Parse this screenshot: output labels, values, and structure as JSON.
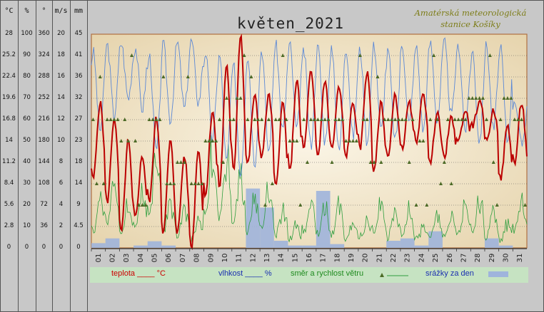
{
  "title": "květen_2021",
  "station": [
    "Amatérská meteorologická",
    "stanice Košíky"
  ],
  "colors": {
    "temperature": "#bb0000",
    "humidity": "#5b88d6",
    "wind_speed": "#2e9e3e",
    "wind_direction": "#4c6a26",
    "precipitation": "#9fb4dc",
    "legend_background": "#c6e3c2"
  },
  "axes": [
    {
      "unit": "°C",
      "ticks": [
        "28",
        "25.2",
        "22.4",
        "19.6",
        "16.8",
        "14",
        "11.2",
        "8.4",
        "5.6",
        "2.8",
        "0"
      ]
    },
    {
      "unit": "%",
      "ticks": [
        "100",
        "90",
        "80",
        "70",
        "60",
        "50",
        "40",
        "30",
        "20",
        "10",
        "0"
      ]
    },
    {
      "unit": "°",
      "ticks": [
        "360",
        "324",
        "288",
        "252",
        "216",
        "180",
        "144",
        "108",
        "72",
        "36",
        "0"
      ]
    },
    {
      "unit": "m/s",
      "ticks": [
        "20",
        "18",
        "16",
        "14",
        "12",
        "10",
        "8",
        "6",
        "4",
        "2",
        "0"
      ]
    },
    {
      "unit": "mm",
      "ticks": [
        "45",
        "41",
        "36",
        "32",
        "27",
        "23",
        "18",
        "14",
        "9",
        "4.5",
        "0"
      ]
    }
  ],
  "legend": {
    "temperature": "teplota ____ °C",
    "humidity": "vlhkost ____ %",
    "wind": "směr a rychlost větru",
    "precipitation": "srážky za den"
  },
  "chart_data": {
    "type": "line",
    "title": "květen_2021",
    "x": [
      "01",
      "02",
      "03",
      "04",
      "05",
      "06",
      "07",
      "08",
      "09",
      "10",
      "11",
      "12",
      "13",
      "14",
      "15",
      "16",
      "17",
      "18",
      "19",
      "20",
      "21",
      "22",
      "23",
      "24",
      "25",
      "26",
      "27",
      "28",
      "29",
      "30",
      "31"
    ],
    "grid": true,
    "series": [
      {
        "name": "teplota",
        "unit": "°C",
        "ylim": [
          0,
          28
        ],
        "daily_min_max": [
          [
            9,
            19
          ],
          [
            6,
            17
          ],
          [
            2,
            14
          ],
          [
            4,
            12
          ],
          [
            6,
            17
          ],
          [
            2,
            14
          ],
          [
            2,
            12
          ],
          [
            0,
            13
          ],
          [
            7,
            18
          ],
          [
            8,
            24
          ],
          [
            10,
            28
          ],
          [
            11,
            20
          ],
          [
            12,
            20
          ],
          [
            8,
            19
          ],
          [
            10,
            22
          ],
          [
            13,
            23
          ],
          [
            12,
            22
          ],
          [
            13,
            21
          ],
          [
            12,
            19
          ],
          [
            13,
            23
          ],
          [
            10,
            19
          ],
          [
            12,
            20
          ],
          [
            13,
            19
          ],
          [
            14,
            20
          ],
          [
            11,
            18
          ],
          [
            12,
            17
          ],
          [
            14,
            18
          ],
          [
            16,
            19
          ],
          [
            14,
            18
          ],
          [
            9,
            16
          ],
          [
            11,
            19
          ]
        ]
      },
      {
        "name": "vlhkost",
        "unit": "%",
        "ylim": [
          0,
          100
        ],
        "daily_min_max": [
          [
            55,
            92
          ],
          [
            62,
            95
          ],
          [
            70,
            96
          ],
          [
            65,
            94
          ],
          [
            45,
            90
          ],
          [
            60,
            95
          ],
          [
            65,
            96
          ],
          [
            68,
            97
          ],
          [
            50,
            92
          ],
          [
            40,
            90
          ],
          [
            35,
            85
          ],
          [
            40,
            90
          ],
          [
            45,
            93
          ],
          [
            55,
            95
          ],
          [
            55,
            95
          ],
          [
            48,
            92
          ],
          [
            50,
            94
          ],
          [
            45,
            93
          ],
          [
            52,
            94
          ],
          [
            50,
            93
          ],
          [
            55,
            95
          ],
          [
            50,
            92
          ],
          [
            58,
            95
          ],
          [
            55,
            94
          ],
          [
            60,
            96
          ],
          [
            62,
            96
          ],
          [
            55,
            95
          ],
          [
            50,
            92
          ],
          [
            55,
            95
          ],
          [
            50,
            93
          ],
          [
            48,
            70
          ]
        ]
      },
      {
        "name": "rychlost větru",
        "unit": "m/s",
        "ylim": [
          0,
          20
        ],
        "daily_max": [
          6,
          9,
          5,
          7,
          12,
          6,
          5,
          3,
          12,
          11,
          9,
          6,
          7,
          5,
          3,
          6,
          5,
          5,
          3,
          4,
          5,
          4,
          5,
          3,
          4,
          4,
          5,
          6,
          4,
          3,
          6
        ]
      },
      {
        "name": "směr větru",
        "unit": "°",
        "ylim": [
          0,
          360
        ],
        "daily_main": [
          108,
          216,
          180,
          72,
          216,
          108,
          144,
          108,
          180,
          216,
          252,
          216,
          216,
          216,
          180,
          216,
          216,
          216,
          180,
          216,
          180,
          216,
          216,
          180,
          216,
          216,
          216,
          252,
          216,
          252,
          216
        ]
      },
      {
        "name": "srážky za den",
        "unit": "mm",
        "ylim": [
          0,
          45
        ],
        "values": [
          1.0,
          2.0,
          0.0,
          0.5,
          1.4,
          0.5,
          0.0,
          0.0,
          0.0,
          0.0,
          0.0,
          12.5,
          8.5,
          1.5,
          0.5,
          0.5,
          12.0,
          0.8,
          0.0,
          0.0,
          0.0,
          1.5,
          2.0,
          0.5,
          3.5,
          0.0,
          0.0,
          0.0,
          2.0,
          0.5,
          0.0
        ]
      }
    ]
  }
}
